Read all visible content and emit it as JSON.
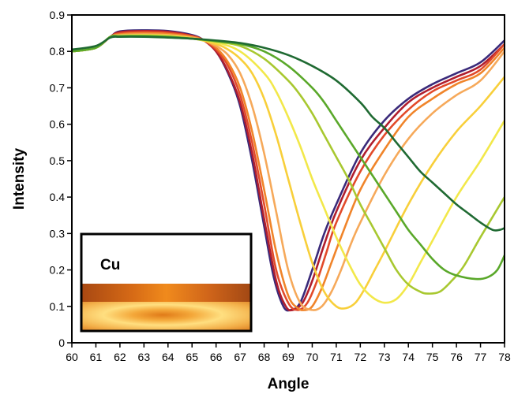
{
  "chart_data": {
    "type": "line",
    "title": "",
    "xlabel": "Angle",
    "ylabel": "Intensity",
    "xlim": [
      60,
      78
    ],
    "ylim": [
      0,
      0.9
    ],
    "xticks": [
      60,
      61,
      62,
      63,
      64,
      65,
      66,
      67,
      68,
      69,
      70,
      71,
      72,
      73,
      74,
      75,
      76,
      77,
      78
    ],
    "yticks": [
      0,
      0.1,
      0.2,
      0.3,
      0.4,
      0.5,
      0.6,
      0.7,
      0.8,
      0.9
    ],
    "ytick_labels": [
      "0",
      "0.1",
      "0.2",
      "0.3",
      "0.4",
      "0.5",
      "0.6",
      "0.7",
      "0.8",
      "0.9"
    ],
    "grid": false,
    "inset": {
      "label": "Cu"
    },
    "series": [
      {
        "color": "#3a2a7a",
        "min_x": 69.1,
        "min_y": 0.09,
        "points": [
          [
            60,
            0.8
          ],
          [
            61,
            0.81
          ],
          [
            61.6,
            0.84
          ],
          [
            62,
            0.855
          ],
          [
            63,
            0.858
          ],
          [
            64,
            0.856
          ],
          [
            65,
            0.845
          ],
          [
            65.5,
            0.83
          ],
          [
            66,
            0.8
          ],
          [
            66.5,
            0.74
          ],
          [
            67,
            0.65
          ],
          [
            67.5,
            0.5
          ],
          [
            68,
            0.32
          ],
          [
            68.4,
            0.18
          ],
          [
            68.8,
            0.1
          ],
          [
            69.1,
            0.09
          ],
          [
            69.5,
            0.11
          ],
          [
            70,
            0.2
          ],
          [
            70.5,
            0.3
          ],
          [
            71,
            0.38
          ],
          [
            72,
            0.52
          ],
          [
            73,
            0.61
          ],
          [
            74,
            0.67
          ],
          [
            75,
            0.71
          ],
          [
            76,
            0.74
          ],
          [
            77,
            0.77
          ],
          [
            78,
            0.83
          ]
        ]
      },
      {
        "color": "#b01e2e",
        "min_x": 69.2,
        "min_y": 0.09,
        "points": [
          [
            60,
            0.8
          ],
          [
            61,
            0.81
          ],
          [
            61.6,
            0.84
          ],
          [
            62,
            0.853
          ],
          [
            63,
            0.856
          ],
          [
            64,
            0.854
          ],
          [
            65,
            0.843
          ],
          [
            65.5,
            0.83
          ],
          [
            66,
            0.8
          ],
          [
            66.5,
            0.745
          ],
          [
            67,
            0.66
          ],
          [
            67.5,
            0.52
          ],
          [
            68,
            0.34
          ],
          [
            68.5,
            0.17
          ],
          [
            68.9,
            0.1
          ],
          [
            69.2,
            0.09
          ],
          [
            69.6,
            0.11
          ],
          [
            70,
            0.17
          ],
          [
            70.5,
            0.27
          ],
          [
            71,
            0.36
          ],
          [
            72,
            0.5
          ],
          [
            73,
            0.59
          ],
          [
            74,
            0.66
          ],
          [
            75,
            0.7
          ],
          [
            76,
            0.73
          ],
          [
            77,
            0.76
          ],
          [
            78,
            0.82
          ]
        ]
      },
      {
        "color": "#e24a2a",
        "min_x": 69.4,
        "min_y": 0.09,
        "points": [
          [
            60,
            0.8
          ],
          [
            61,
            0.81
          ],
          [
            61.6,
            0.84
          ],
          [
            62,
            0.85
          ],
          [
            63,
            0.853
          ],
          [
            64,
            0.851
          ],
          [
            65,
            0.842
          ],
          [
            65.5,
            0.83
          ],
          [
            66,
            0.805
          ],
          [
            66.5,
            0.76
          ],
          [
            67,
            0.68
          ],
          [
            67.5,
            0.55
          ],
          [
            68,
            0.38
          ],
          [
            68.5,
            0.2
          ],
          [
            69,
            0.11
          ],
          [
            69.4,
            0.09
          ],
          [
            69.8,
            0.11
          ],
          [
            70.2,
            0.17
          ],
          [
            70.6,
            0.25
          ],
          [
            71,
            0.33
          ],
          [
            72,
            0.47
          ],
          [
            73,
            0.57
          ],
          [
            74,
            0.64
          ],
          [
            75,
            0.69
          ],
          [
            76,
            0.72
          ],
          [
            77,
            0.75
          ],
          [
            78,
            0.82
          ]
        ]
      },
      {
        "color": "#f0842a",
        "min_x": 69.7,
        "min_y": 0.09,
        "points": [
          [
            60,
            0.8
          ],
          [
            61,
            0.81
          ],
          [
            61.6,
            0.84
          ],
          [
            62,
            0.847
          ],
          [
            63,
            0.85
          ],
          [
            64,
            0.848
          ],
          [
            65,
            0.84
          ],
          [
            65.5,
            0.83
          ],
          [
            66,
            0.81
          ],
          [
            66.5,
            0.77
          ],
          [
            67,
            0.7
          ],
          [
            67.5,
            0.58
          ],
          [
            68,
            0.42
          ],
          [
            68.5,
            0.25
          ],
          [
            69,
            0.13
          ],
          [
            69.4,
            0.095
          ],
          [
            69.7,
            0.09
          ],
          [
            70,
            0.1
          ],
          [
            70.4,
            0.15
          ],
          [
            70.8,
            0.22
          ],
          [
            71.2,
            0.29
          ],
          [
            72,
            0.42
          ],
          [
            73,
            0.53
          ],
          [
            74,
            0.62
          ],
          [
            75,
            0.67
          ],
          [
            76,
            0.71
          ],
          [
            77,
            0.74
          ],
          [
            78,
            0.81
          ]
        ]
      },
      {
        "color": "#f6a95a",
        "min_x": 70.0,
        "min_y": 0.09,
        "points": [
          [
            60,
            0.8
          ],
          [
            61,
            0.81
          ],
          [
            61.6,
            0.84
          ],
          [
            62,
            0.845
          ],
          [
            63,
            0.847
          ],
          [
            64,
            0.845
          ],
          [
            65,
            0.838
          ],
          [
            65.5,
            0.83
          ],
          [
            66,
            0.815
          ],
          [
            66.5,
            0.79
          ],
          [
            67,
            0.74
          ],
          [
            67.5,
            0.65
          ],
          [
            68,
            0.52
          ],
          [
            68.5,
            0.36
          ],
          [
            69,
            0.2
          ],
          [
            69.5,
            0.11
          ],
          [
            70,
            0.09
          ],
          [
            70.4,
            0.1
          ],
          [
            70.8,
            0.14
          ],
          [
            71.2,
            0.2
          ],
          [
            71.6,
            0.27
          ],
          [
            72,
            0.33
          ],
          [
            73,
            0.46
          ],
          [
            74,
            0.56
          ],
          [
            75,
            0.63
          ],
          [
            76,
            0.68
          ],
          [
            77,
            0.72
          ],
          [
            78,
            0.8
          ]
        ]
      },
      {
        "color": "#f8cf3a",
        "min_x": 71.4,
        "min_y": 0.095,
        "points": [
          [
            60,
            0.8
          ],
          [
            61,
            0.81
          ],
          [
            61.6,
            0.84
          ],
          [
            62,
            0.843
          ],
          [
            63,
            0.845
          ],
          [
            64,
            0.843
          ],
          [
            65,
            0.836
          ],
          [
            66,
            0.82
          ],
          [
            66.5,
            0.805
          ],
          [
            67,
            0.78
          ],
          [
            67.5,
            0.74
          ],
          [
            68,
            0.67
          ],
          [
            68.5,
            0.57
          ],
          [
            69,
            0.45
          ],
          [
            69.5,
            0.33
          ],
          [
            70,
            0.22
          ],
          [
            70.5,
            0.14
          ],
          [
            71,
            0.1
          ],
          [
            71.4,
            0.095
          ],
          [
            71.8,
            0.11
          ],
          [
            72.2,
            0.15
          ],
          [
            72.6,
            0.2
          ],
          [
            73,
            0.25
          ],
          [
            74,
            0.38
          ],
          [
            75,
            0.49
          ],
          [
            76,
            0.58
          ],
          [
            77,
            0.65
          ],
          [
            78,
            0.73
          ]
        ]
      },
      {
        "color": "#f2e84a",
        "min_x": 73.0,
        "min_y": 0.11,
        "points": [
          [
            60,
            0.8
          ],
          [
            61,
            0.81
          ],
          [
            61.6,
            0.84
          ],
          [
            62,
            0.843
          ],
          [
            63,
            0.844
          ],
          [
            64,
            0.842
          ],
          [
            65,
            0.835
          ],
          [
            66,
            0.825
          ],
          [
            67,
            0.8
          ],
          [
            68,
            0.74
          ],
          [
            68.5,
            0.69
          ],
          [
            69,
            0.62
          ],
          [
            69.5,
            0.54
          ],
          [
            70,
            0.45
          ],
          [
            70.5,
            0.37
          ],
          [
            71,
            0.29
          ],
          [
            71.5,
            0.22
          ],
          [
            72,
            0.16
          ],
          [
            72.5,
            0.125
          ],
          [
            73,
            0.11
          ],
          [
            73.5,
            0.12
          ],
          [
            74,
            0.16
          ],
          [
            74.5,
            0.22
          ],
          [
            75,
            0.28
          ],
          [
            76,
            0.4
          ],
          [
            77,
            0.5
          ],
          [
            78,
            0.61
          ]
        ]
      },
      {
        "color": "#a8c830",
        "min_x": 74.8,
        "min_y": 0.135,
        "points": [
          [
            60,
            0.8
          ],
          [
            61,
            0.81
          ],
          [
            61.6,
            0.84
          ],
          [
            62,
            0.842
          ],
          [
            63,
            0.843
          ],
          [
            64,
            0.841
          ],
          [
            65,
            0.835
          ],
          [
            66,
            0.827
          ],
          [
            67,
            0.815
          ],
          [
            68,
            0.78
          ],
          [
            69,
            0.72
          ],
          [
            69.5,
            0.68
          ],
          [
            70,
            0.63
          ],
          [
            70.5,
            0.57
          ],
          [
            71,
            0.51
          ],
          [
            71.5,
            0.45
          ],
          [
            72,
            0.38
          ],
          [
            72.5,
            0.32
          ],
          [
            73,
            0.26
          ],
          [
            73.5,
            0.2
          ],
          [
            74,
            0.16
          ],
          [
            74.5,
            0.14
          ],
          [
            74.8,
            0.135
          ],
          [
            75.3,
            0.14
          ],
          [
            75.8,
            0.17
          ],
          [
            76.3,
            0.21
          ],
          [
            77,
            0.29
          ],
          [
            78,
            0.4
          ]
        ]
      },
      {
        "color": "#5aa82a",
        "min_x": 76.8,
        "min_y": 0.175,
        "points": [
          [
            60,
            0.8
          ],
          [
            61,
            0.81
          ],
          [
            61.6,
            0.84
          ],
          [
            62,
            0.842
          ],
          [
            63,
            0.842
          ],
          [
            64,
            0.84
          ],
          [
            65,
            0.835
          ],
          [
            66,
            0.828
          ],
          [
            67,
            0.82
          ],
          [
            68,
            0.8
          ],
          [
            69,
            0.76
          ],
          [
            70,
            0.7
          ],
          [
            70.5,
            0.66
          ],
          [
            71,
            0.61
          ],
          [
            71.5,
            0.56
          ],
          [
            72,
            0.51
          ],
          [
            72.5,
            0.46
          ],
          [
            73,
            0.41
          ],
          [
            73.5,
            0.36
          ],
          [
            74,
            0.31
          ],
          [
            74.5,
            0.27
          ],
          [
            75,
            0.23
          ],
          [
            75.5,
            0.2
          ],
          [
            76,
            0.185
          ],
          [
            76.8,
            0.175
          ],
          [
            77.3,
            0.18
          ],
          [
            77.7,
            0.2
          ],
          [
            78,
            0.24
          ]
        ]
      },
      {
        "color": "#1f6a32",
        "min_x": 77.8,
        "min_y": 0.31,
        "points": [
          [
            60,
            0.805
          ],
          [
            61,
            0.815
          ],
          [
            61.6,
            0.838
          ],
          [
            62,
            0.84
          ],
          [
            63,
            0.84
          ],
          [
            64,
            0.838
          ],
          [
            65,
            0.835
          ],
          [
            66,
            0.83
          ],
          [
            67,
            0.823
          ],
          [
            68,
            0.81
          ],
          [
            69,
            0.79
          ],
          [
            70,
            0.76
          ],
          [
            71,
            0.72
          ],
          [
            72,
            0.66
          ],
          [
            72.5,
            0.62
          ],
          [
            73,
            0.59
          ],
          [
            73.5,
            0.55
          ],
          [
            74,
            0.51
          ],
          [
            74.5,
            0.47
          ],
          [
            75,
            0.44
          ],
          [
            75.5,
            0.41
          ],
          [
            76,
            0.38
          ],
          [
            76.5,
            0.355
          ],
          [
            77,
            0.33
          ],
          [
            77.5,
            0.31
          ],
          [
            77.8,
            0.31
          ],
          [
            78,
            0.315
          ]
        ]
      }
    ]
  }
}
